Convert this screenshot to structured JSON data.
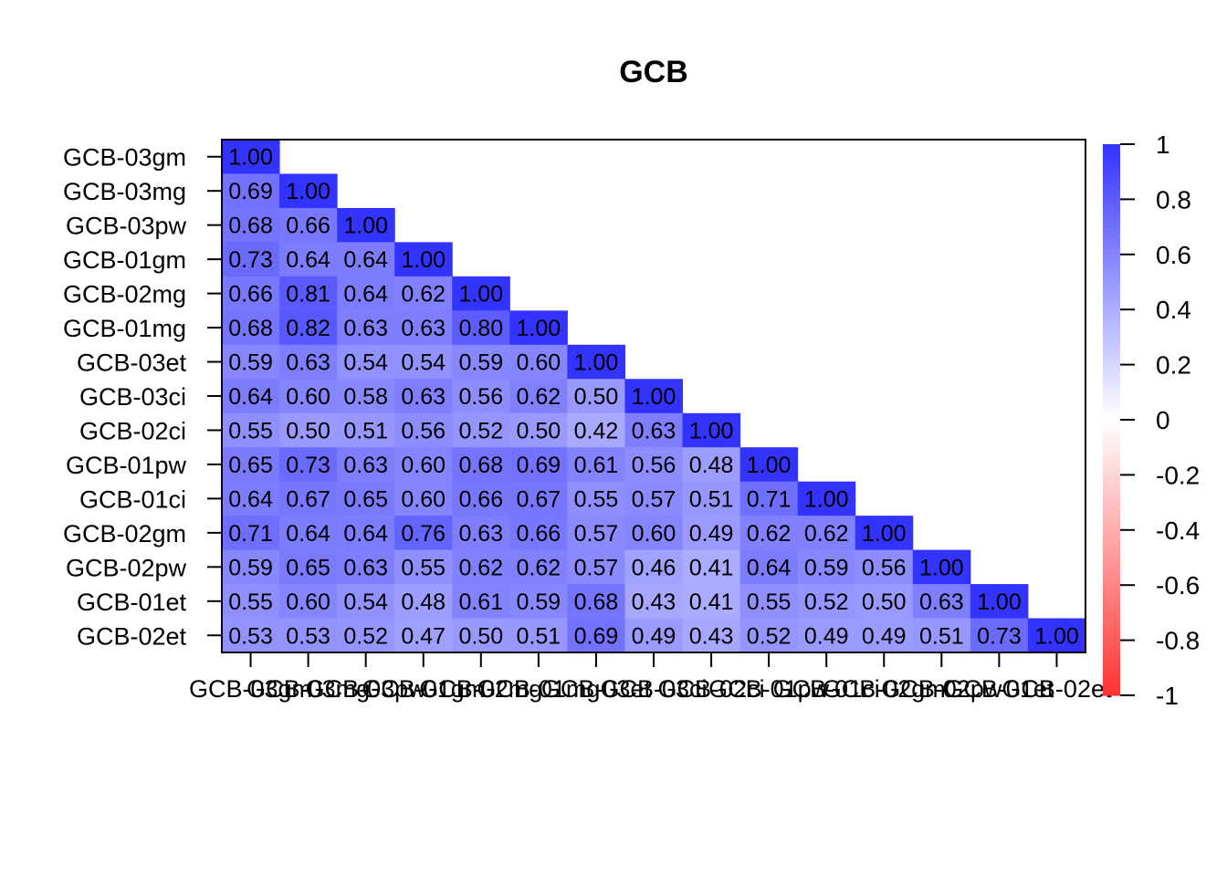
{
  "chart_data": {
    "type": "heatmap",
    "title": "GCB",
    "labels": [
      "GCB-03gm",
      "GCB-03mg",
      "GCB-03pw",
      "GCB-01gm",
      "GCB-02mg",
      "GCB-01mg",
      "GCB-03et",
      "GCB-03ci",
      "GCB-02ci",
      "GCB-01pw",
      "GCB-01ci",
      "GCB-02gm",
      "GCB-02pw",
      "GCB-01et",
      "GCB-02et"
    ],
    "matrix": [
      [
        1.0
      ],
      [
        0.69,
        1.0
      ],
      [
        0.68,
        0.66,
        1.0
      ],
      [
        0.73,
        0.64,
        0.64,
        1.0
      ],
      [
        0.66,
        0.81,
        0.64,
        0.62,
        1.0
      ],
      [
        0.68,
        0.82,
        0.63,
        0.63,
        0.8,
        1.0
      ],
      [
        0.59,
        0.63,
        0.54,
        0.54,
        0.59,
        0.6,
        1.0
      ],
      [
        0.64,
        0.6,
        0.58,
        0.63,
        0.56,
        0.62,
        0.5,
        1.0
      ],
      [
        0.55,
        0.5,
        0.51,
        0.56,
        0.52,
        0.5,
        0.42,
        0.63,
        1.0
      ],
      [
        0.65,
        0.73,
        0.63,
        0.6,
        0.68,
        0.69,
        0.61,
        0.56,
        0.48,
        1.0
      ],
      [
        0.64,
        0.67,
        0.65,
        0.6,
        0.66,
        0.67,
        0.55,
        0.57,
        0.51,
        0.71,
        1.0
      ],
      [
        0.71,
        0.64,
        0.64,
        0.76,
        0.63,
        0.66,
        0.57,
        0.6,
        0.49,
        0.62,
        0.62,
        1.0
      ],
      [
        0.59,
        0.65,
        0.63,
        0.55,
        0.62,
        0.62,
        0.57,
        0.46,
        0.41,
        0.64,
        0.59,
        0.56,
        1.0
      ],
      [
        0.55,
        0.6,
        0.54,
        0.48,
        0.61,
        0.59,
        0.68,
        0.43,
        0.41,
        0.55,
        0.52,
        0.5,
        0.63,
        1.0
      ],
      [
        0.53,
        0.53,
        0.52,
        0.47,
        0.5,
        0.51,
        0.69,
        0.49,
        0.43,
        0.52,
        0.49,
        0.49,
        0.51,
        0.73,
        1.0
      ]
    ],
    "color_scale": {
      "min": -1,
      "max": 1,
      "ticks": [
        "1",
        "0.8",
        "0.6",
        "0.4",
        "0.2",
        "0",
        "-0.2",
        "-0.4",
        "-0.6",
        "-0.8",
        "-1"
      ],
      "low_color": "#ff3333",
      "mid_color": "#ffffff",
      "high_color": "#3333ff"
    },
    "legend_position": "right"
  }
}
